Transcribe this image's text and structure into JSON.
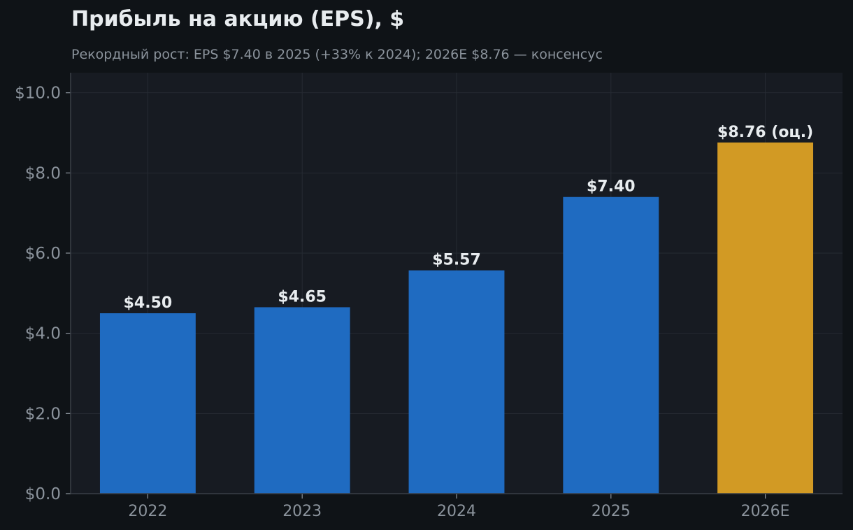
{
  "colors": {
    "page_background": "#0f1317",
    "plot_background": "#171b22",
    "actual_bar": "#1f6bc1",
    "estimate_bar": "#d29a24",
    "grid": "#262b33",
    "axis": "#3a3f47",
    "tick_text": "#8b939c",
    "label_text": "#e8ecef"
  },
  "chart_data": {
    "type": "bar",
    "title": "Прибыль на акцию (EPS), $",
    "subtitle": "Рекордный рост: EPS $7.40 в 2025 (+33% к 2024); 2026E $8.76 — консенсус",
    "categories": [
      "2022",
      "2023",
      "2024",
      "2025",
      "2026E"
    ],
    "values": [
      4.5,
      4.65,
      5.57,
      7.4,
      8.76
    ],
    "estimate": [
      false,
      false,
      false,
      false,
      true
    ],
    "data_labels": [
      "$4.50",
      "$4.65",
      "$5.57",
      "$7.40",
      "$8.76 (оц.)"
    ],
    "ylim": [
      0,
      10.5
    ],
    "yticks": [
      0,
      2,
      4,
      6,
      8,
      10
    ],
    "ytick_labels": [
      "$0.0",
      "$2.0",
      "$4.0",
      "$6.0",
      "$8.0",
      "$10.0"
    ],
    "xlabel": "",
    "ylabel": "",
    "grid": true,
    "legend": false
  }
}
